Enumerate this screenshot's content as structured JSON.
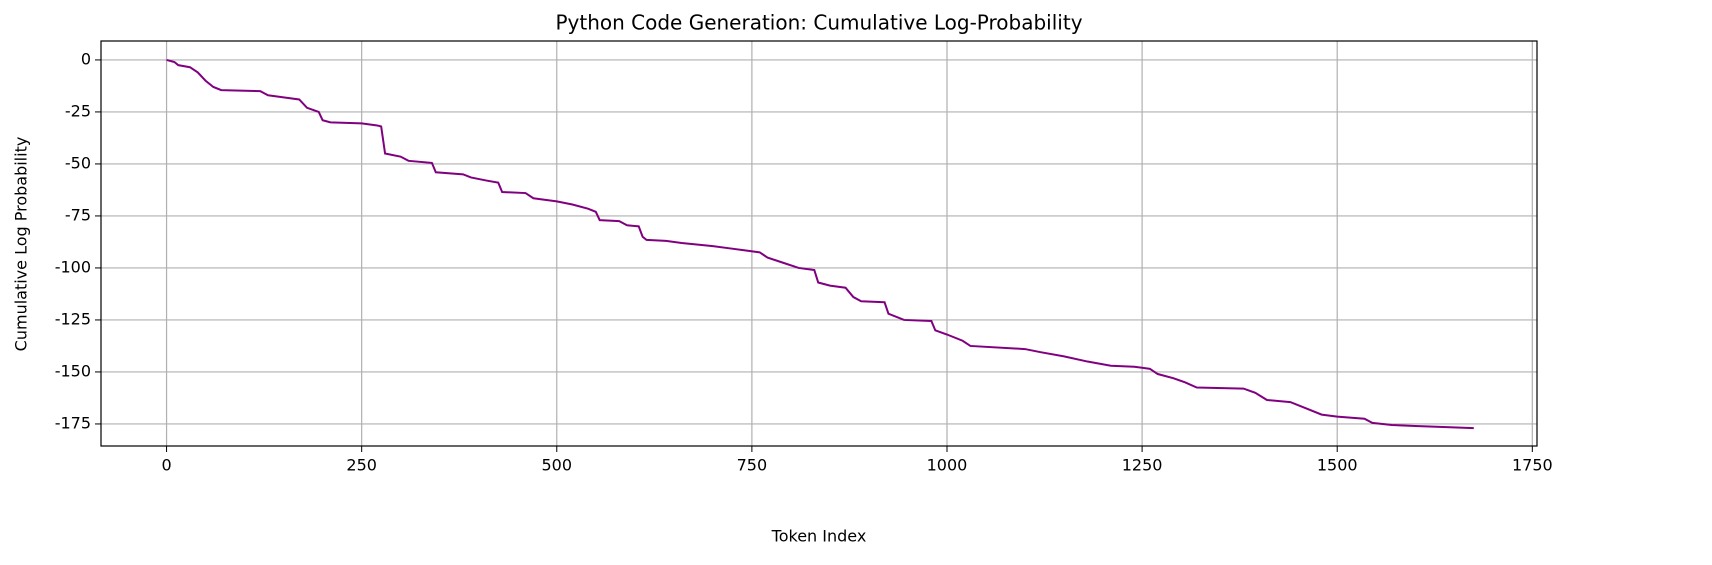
{
  "chart_data": {
    "type": "line",
    "title": "Python Code Generation: Cumulative Log-Probability",
    "xlabel": "Token Index",
    "ylabel": "Cumulative Log Probability",
    "x": [
      0,
      10,
      15,
      30,
      40,
      50,
      60,
      70,
      120,
      130,
      150,
      170,
      180,
      195,
      200,
      210,
      250,
      270,
      275,
      280,
      300,
      310,
      340,
      345,
      380,
      390,
      410,
      425,
      430,
      460,
      470,
      500,
      520,
      540,
      550,
      555,
      580,
      590,
      605,
      610,
      615,
      640,
      660,
      700,
      720,
      740,
      760,
      770,
      790,
      810,
      830,
      835,
      850,
      870,
      880,
      890,
      920,
      925,
      945,
      980,
      985,
      1000,
      1020,
      1030,
      1100,
      1120,
      1150,
      1180,
      1210,
      1240,
      1260,
      1270,
      1290,
      1305,
      1320,
      1380,
      1395,
      1410,
      1440,
      1460,
      1480,
      1500,
      1535,
      1545,
      1570,
      1600,
      1640,
      1675
    ],
    "series": [
      {
        "name": "Cumulative Log Probability",
        "color": "#800080",
        "values": [
          0,
          -1,
          -2.5,
          -3.5,
          -6,
          -10,
          -13,
          -14.5,
          -15,
          -17,
          -18,
          -19,
          -23,
          -25,
          -29,
          -30,
          -30.5,
          -31.5,
          -32,
          -45,
          -46.5,
          -48.5,
          -49.5,
          -54,
          -55,
          -56.5,
          -58,
          -59,
          -63.5,
          -64,
          -66.5,
          -68,
          -69.5,
          -71.5,
          -73,
          -77,
          -77.5,
          -79.5,
          -80,
          -85,
          -86.5,
          -87,
          -88,
          -89.5,
          -90.5,
          -91.5,
          -92.5,
          -95,
          -97.5,
          -100,
          -101,
          -107,
          -108.5,
          -109.5,
          -114,
          -116,
          -116.5,
          -122,
          -125,
          -125.5,
          -130,
          -132,
          -135,
          -137.5,
          -139,
          -140.5,
          -142.5,
          -145,
          -147,
          -147.5,
          -148.5,
          -151,
          -153,
          -155,
          -157.5,
          -158,
          -160,
          -163.5,
          -164.5,
          -167.5,
          -170.5,
          -171.5,
          -172.5,
          -174.5,
          -175.5,
          -176,
          -176.5,
          -177
        ]
      }
    ],
    "xlim": [
      -84,
      1756
    ],
    "xticks": [
      0,
      250,
      500,
      750,
      1000,
      1250,
      1500,
      1750
    ],
    "ylim": [
      -185.6,
      9.1
    ],
    "yticks": [
      0,
      -25,
      -50,
      -75,
      -100,
      -125,
      -150,
      -175
    ],
    "grid": true
  }
}
